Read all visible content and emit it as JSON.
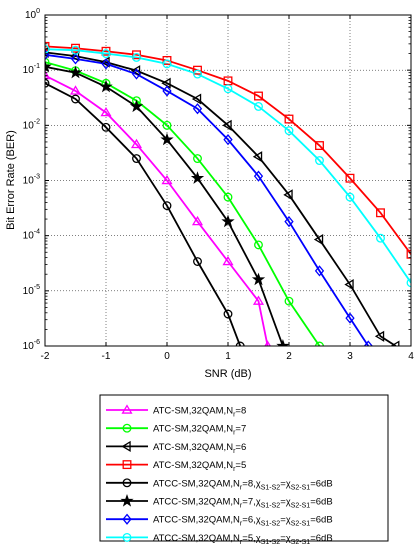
{
  "chart_data": {
    "type": "line",
    "xlabel": "SNR (dB)",
    "ylabel": "Bit Error Rate (BER)",
    "xlim": [
      -2,
      4
    ],
    "ylim": [
      1e-06,
      1
    ],
    "yscale": "log",
    "xticks": [
      "-2",
      "-1",
      "0",
      "1",
      "2",
      "3",
      "4"
    ],
    "yticks": [
      {
        "exp": "0",
        "v": 1
      },
      {
        "exp": "-1",
        "v": 0.1
      },
      {
        "exp": "-2",
        "v": 0.01
      },
      {
        "exp": "-3",
        "v": 0.001
      },
      {
        "exp": "-4",
        "v": 0.0001
      },
      {
        "exp": "-5",
        "v": 1e-05
      },
      {
        "exp": "-6",
        "v": 1e-06
      }
    ],
    "ytick_base": "10",
    "grid": true,
    "legend_position": "below",
    "series": [
      {
        "legend": {
          "text": "ATC-SM,32QAM,N",
          "sub": "r",
          "suffix": "=8"
        },
        "color": "#ff00ff",
        "marker": "triangle-up",
        "x": [
          -2,
          -1.5,
          -1,
          -0.5,
          0,
          0.5,
          1,
          1.5,
          1.65
        ],
        "y": [
          0.08,
          0.042,
          0.017,
          0.0045,
          0.001,
          0.00018,
          3.4e-05,
          6.5e-06,
          1e-06
        ]
      },
      {
        "legend": {
          "text": "ATC-SM,32QAM,N",
          "sub": "r",
          "suffix": "=7"
        },
        "color": "#00ff00",
        "marker": "circle",
        "x": [
          -2,
          -1.5,
          -1,
          -0.5,
          0,
          0.5,
          1,
          1.5,
          2,
          2.5
        ],
        "y": [
          0.14,
          0.098,
          0.058,
          0.028,
          0.01,
          0.0025,
          0.0005,
          6.8e-05,
          6.5e-06,
          1e-06
        ]
      },
      {
        "legend": {
          "text": "ATC-SM,32QAM,N",
          "sub": "r",
          "suffix": "=6"
        },
        "color": "#000000",
        "marker": "triangle-left",
        "x": [
          -2,
          -1.5,
          -1,
          -0.5,
          0,
          0.5,
          1,
          1.5,
          2,
          2.5,
          3,
          3.5,
          3.75
        ],
        "y": [
          0.21,
          0.18,
          0.14,
          0.098,
          0.058,
          0.03,
          0.01,
          0.0027,
          0.00055,
          8.5e-05,
          1.3e-05,
          1.5e-06,
          1e-06
        ]
      },
      {
        "legend": {
          "text": "ATC-SM,32QAM,N",
          "sub": "r",
          "suffix": "=5"
        },
        "color": "#ff0000",
        "marker": "square",
        "x": [
          -2,
          -1.5,
          -1,
          -0.5,
          0,
          0.5,
          1,
          1.5,
          2,
          2.5,
          3,
          3.5,
          4
        ],
        "y": [
          0.27,
          0.25,
          0.22,
          0.19,
          0.15,
          0.1,
          0.064,
          0.034,
          0.013,
          0.0043,
          0.0011,
          0.00026,
          4.6e-05
        ]
      },
      {
        "legend": {
          "text": "ATCC-SM,32QAM,N",
          "sub": "r",
          "suffix": "=8,χ",
          "sub2": "S1-S2",
          "suffix2": "=χ",
          "sub3": "S2-S1",
          "suffix3": "=6dB"
        },
        "color": "#000000",
        "marker": "circle",
        "x": [
          -2,
          -1.5,
          -1,
          -0.5,
          0,
          0.5,
          1,
          1.2
        ],
        "y": [
          0.058,
          0.03,
          0.0092,
          0.0025,
          0.00035,
          3.4e-05,
          3.8e-06,
          1e-06
        ]
      },
      {
        "legend": {
          "text": "ATCC-SM,32QAM,N",
          "sub": "r",
          "suffix": "=7,χ",
          "sub2": "S1-S2",
          "suffix2": "=χ",
          "sub3": "S2-S1",
          "suffix3": "=6dB"
        },
        "color": "#000000",
        "marker": "star",
        "x": [
          -2,
          -1.5,
          -1,
          -0.5,
          0,
          0.5,
          1,
          1.5,
          1.9
        ],
        "y": [
          0.115,
          0.09,
          0.05,
          0.022,
          0.0055,
          0.0011,
          0.00018,
          1.6e-05,
          1e-06
        ]
      },
      {
        "legend": {
          "text": "ATCC-SM,32QAM,N",
          "sub": "r",
          "suffix": "=6,χ",
          "sub2": "S1-S2",
          "suffix2": "=χ",
          "sub3": "S2-S1",
          "suffix3": "=6dB"
        },
        "color": "#0000ff",
        "marker": "diamond",
        "x": [
          -2,
          -1.5,
          -1,
          -0.5,
          0,
          0.5,
          1,
          1.5,
          2,
          2.5,
          3,
          3.3
        ],
        "y": [
          0.19,
          0.16,
          0.13,
          0.085,
          0.042,
          0.02,
          0.0055,
          0.0012,
          0.00018,
          2.3e-05,
          3.2e-06,
          1e-06
        ]
      },
      {
        "legend": {
          "text": "ATCC-SM,32QAM,N",
          "sub": "r",
          "suffix": "=5,χ",
          "sub2": "S1-S2",
          "suffix2": "=χ",
          "sub3": "S2-S1",
          "suffix3": "=6dB"
        },
        "color": "#00ffff",
        "marker": "circle",
        "x": [
          -2,
          -1.5,
          -1,
          -0.5,
          0,
          0.5,
          1,
          1.5,
          2,
          2.5,
          3,
          3.5,
          4
        ],
        "y": [
          0.24,
          0.23,
          0.2,
          0.17,
          0.13,
          0.085,
          0.046,
          0.022,
          0.008,
          0.0023,
          0.0005,
          9e-05,
          1.4e-05
        ]
      }
    ]
  }
}
